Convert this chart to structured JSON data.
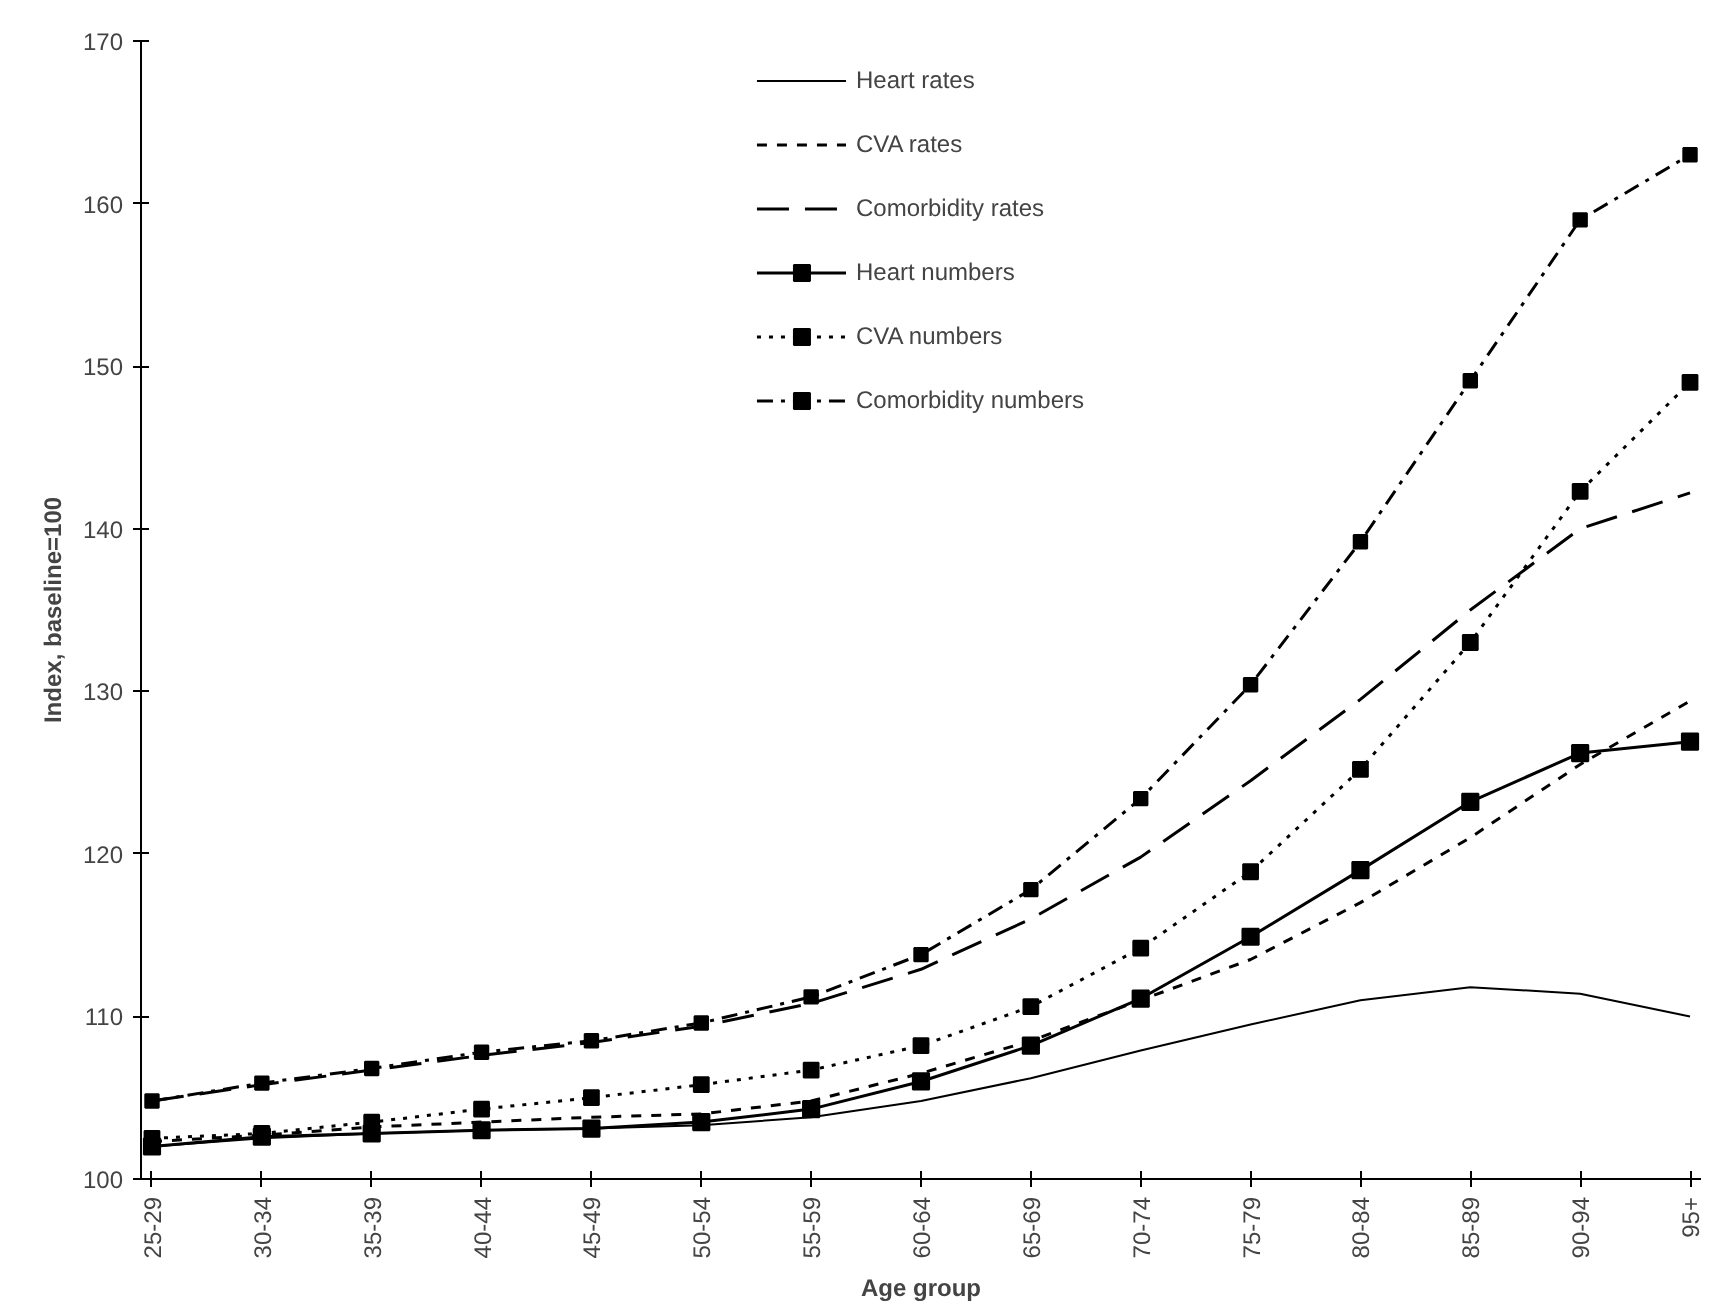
{
  "chart_data": {
    "type": "line",
    "xlabel": "Age group",
    "ylabel": "Index, baseline=100",
    "categories": [
      "25-29",
      "30-34",
      "35-39",
      "40-44",
      "45-49",
      "50-54",
      "55-59",
      "60-64",
      "65-69",
      "70-74",
      "75-79",
      "80-84",
      "85-89",
      "90-94",
      "95+"
    ],
    "ylim": [
      100,
      170
    ],
    "yticks": [
      100,
      110,
      120,
      130,
      140,
      150,
      160,
      170
    ],
    "grid": false,
    "legend": "top",
    "series": [
      {
        "name": "Heart rates",
        "color": "#000000",
        "line_style": "solid",
        "marker": "none",
        "values": [
          102,
          102.5,
          102.8,
          103,
          103.1,
          103.3,
          103.8,
          104.8,
          106.2,
          107.9,
          109.5,
          111,
          111.8,
          111.4,
          110
        ]
      },
      {
        "name": "CVA rates",
        "color": "#000000",
        "line_style": "dashed",
        "marker": "none",
        "values": [
          102.3,
          102.7,
          103.2,
          103.5,
          103.8,
          104,
          104.8,
          106.5,
          108.5,
          111,
          113.5,
          117,
          121,
          125.5,
          129.4
        ]
      },
      {
        "name": "Comorbidity rates",
        "color": "#000000",
        "line_style": "longdash",
        "marker": "none",
        "values": [
          104.8,
          105.8,
          106.7,
          107.6,
          108.4,
          109.4,
          110.8,
          112.9,
          116,
          119.8,
          124.5,
          129.5,
          135,
          140,
          142.2
        ]
      },
      {
        "name": "Heart numbers",
        "color": "#000000",
        "line_style": "solid",
        "marker": "square",
        "values": [
          102,
          102.6,
          102.8,
          103,
          103.1,
          103.5,
          104.3,
          106,
          108.2,
          111.1,
          114.9,
          119,
          123.2,
          126.2,
          126.9
        ]
      },
      {
        "name": "CVA numbers",
        "color": "#000000",
        "line_style": "dotted",
        "marker": "square",
        "values": [
          102.5,
          102.8,
          103.5,
          104.3,
          105,
          105.8,
          106.7,
          108.2,
          110.6,
          114.2,
          118.9,
          125.2,
          133,
          142.3,
          149
        ]
      },
      {
        "name": "Comorbidity numbers",
        "color": "#000000",
        "line_style": "dashdot",
        "marker": "square",
        "values": [
          104.8,
          105.9,
          106.8,
          107.8,
          108.5,
          109.6,
          111.2,
          113.8,
          117.8,
          123.4,
          130.4,
          139.2,
          149.1,
          159,
          163
        ]
      }
    ]
  }
}
